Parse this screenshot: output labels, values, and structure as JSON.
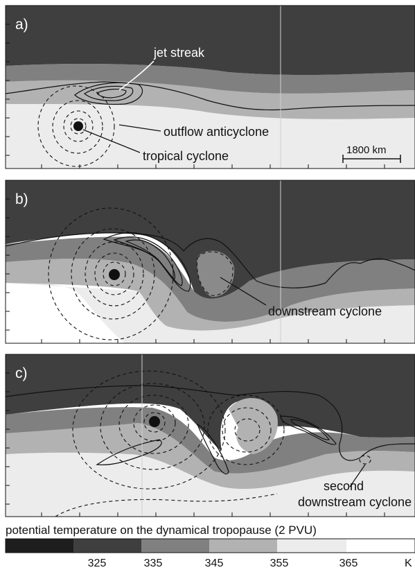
{
  "panels": [
    {
      "label": "a)",
      "annotations": [
        "jet streak",
        "outflow anticyclone",
        "tropical cyclone"
      ],
      "scale_bar": "1800 km"
    },
    {
      "label": "b)",
      "annotations": [
        "downstream cyclone"
      ]
    },
    {
      "label": "c)",
      "annotations": [
        "second",
        "downstream cyclone"
      ]
    }
  ],
  "colorbar": {
    "title": "potential temperature on the dynamical tropopause (2 PVU)",
    "ticks": [
      "325",
      "335",
      "345",
      "355",
      "365"
    ],
    "unit": "K",
    "colors": [
      "#1e1e1e",
      "#3f3f3f",
      "#808080",
      "#b2b2b2",
      "#ececec",
      "#ffffff"
    ]
  }
}
